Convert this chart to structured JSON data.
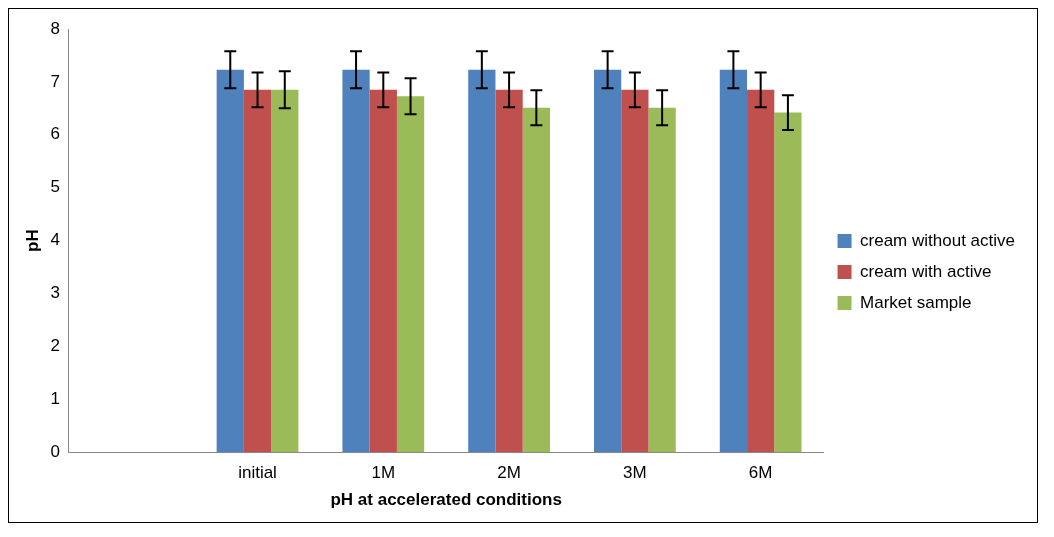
{
  "chart_data": {
    "type": "bar",
    "xlabel": "pH at accelerated conditions",
    "ylabel": "pH",
    "categories": [
      null,
      "initial",
      "1M",
      "2M",
      "3M",
      "6M"
    ],
    "series": [
      {
        "name": "cream without active",
        "color": "#4f81bd",
        "values": [
          null,
          7.23,
          7.23,
          7.23,
          7.23,
          7.23
        ],
        "errors": [
          null,
          0.35,
          0.35,
          0.35,
          0.35,
          0.35
        ]
      },
      {
        "name": "cream with active",
        "color": "#c0504d",
        "values": [
          null,
          6.85,
          6.85,
          6.85,
          6.85,
          6.85
        ],
        "errors": [
          null,
          0.33,
          0.33,
          0.33,
          0.33,
          0.33
        ]
      },
      {
        "name": "Market sample",
        "color": "#9bbb59",
        "values": [
          null,
          6.85,
          6.73,
          6.51,
          6.51,
          6.42
        ],
        "errors": [
          null,
          0.35,
          0.34,
          0.33,
          0.33,
          0.33
        ]
      }
    ],
    "ylim": [
      0,
      8
    ],
    "yticks": [
      0,
      1,
      2,
      3,
      4,
      5,
      6,
      7,
      8
    ],
    "grid": false,
    "legend": "right"
  }
}
